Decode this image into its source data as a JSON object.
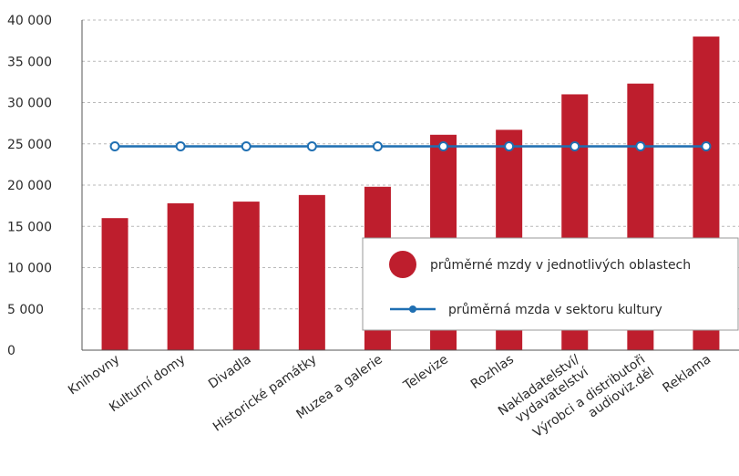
{
  "chart_data": {
    "type": "bar",
    "title": "",
    "xlabel": "",
    "ylabel": "",
    "ylim": [
      0,
      40000
    ],
    "yticks": [
      0,
      5000,
      10000,
      15000,
      20000,
      25000,
      30000,
      35000,
      40000
    ],
    "ytick_labels": [
      "0",
      "5 000",
      "10 000",
      "15 000",
      "20 000",
      "25 000",
      "30 000",
      "35 000",
      "40 000"
    ],
    "grid": "horizontal dashed",
    "categories": [
      "Knihovny",
      "Kulturní domy",
      "Divadla",
      "Historické památky",
      "Muzea a galerie",
      "Televize",
      "Rozhlas",
      "Nakladatelství/ vydavatelství",
      "Výrobci a distributoři audioviz.děl",
      "Reklama"
    ],
    "category_lines": [
      [
        "Knihovny"
      ],
      [
        "Kulturní domy"
      ],
      [
        "Divadla"
      ],
      [
        "Historické památky"
      ],
      [
        "Muzea a galerie"
      ],
      [
        "Televize"
      ],
      [
        "Rozhlas"
      ],
      [
        "Nakladatelství/",
        "vydavatelství"
      ],
      [
        "Výrobci a distributoři",
        "audioviz.děl"
      ],
      [
        "Reklama"
      ]
    ],
    "series": [
      {
        "name": "průměrné mzdy v jednotlivých oblastech",
        "type": "bar",
        "color": "#be1e2d",
        "values": [
          16000,
          17800,
          18000,
          18800,
          19800,
          26100,
          26700,
          31000,
          32300,
          38000
        ]
      },
      {
        "name": "průměrná mzda v sektoru kultury",
        "type": "line",
        "color": "#1f6fb2",
        "values": [
          24700,
          24700,
          24700,
          24700,
          24700,
          24700,
          24700,
          24700,
          24700,
          24700
        ]
      }
    ],
    "legend": {
      "position": "inside-right",
      "items": [
        {
          "label": "průměrné mzdy v jednotlivých oblastech",
          "marker": "circle",
          "color": "#be1e2d"
        },
        {
          "label": "průměrná mzda v sektoru kultury",
          "marker": "line-dot",
          "color": "#1f6fb2"
        }
      ]
    }
  }
}
